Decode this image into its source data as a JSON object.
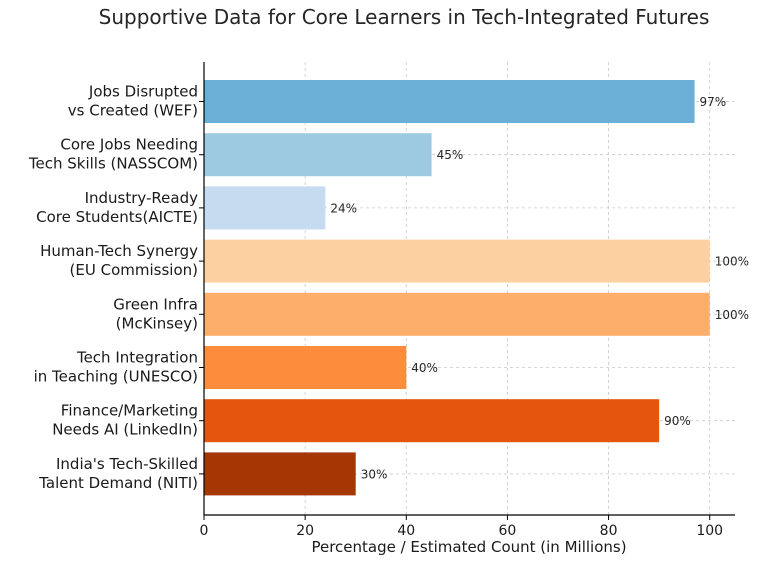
{
  "chart_data": {
    "type": "bar",
    "orientation": "horizontal",
    "title": "Supportive Data for Core Learners in Tech-Integrated Futures",
    "xlabel": "Percentage / Estimated Count (in Millions)",
    "ylabel": "",
    "xlim": [
      0,
      105
    ],
    "xticks": [
      0,
      20,
      40,
      60,
      80,
      100
    ],
    "grid": true,
    "categories": [
      [
        "Jobs Disrupted",
        "vs Created (WEF)"
      ],
      [
        "Core Jobs Needing",
        "Tech Skills (NASSCOM)"
      ],
      [
        "Industry-Ready",
        "Core Students(AICTE)"
      ],
      [
        "Human-Tech Synergy",
        "(EU Commission)"
      ],
      [
        "Green Infra",
        "(McKinsey)"
      ],
      [
        "Tech Integration",
        "in Teaching (UNESCO)"
      ],
      [
        "Finance/Marketing",
        "Needs AI (LinkedIn)"
      ],
      [
        "India's Tech-Skilled",
        "Talent Demand (NITI)"
      ]
    ],
    "values": [
      97,
      45,
      24,
      100,
      100,
      40,
      90,
      30
    ],
    "data_labels": [
      "97%",
      "45%",
      "24%",
      "100%",
      "100%",
      "40%",
      "90%",
      "30%"
    ],
    "colors": [
      "#6baed6",
      "#9ecae1",
      "#c6dbef",
      "#fdd0a2",
      "#fdae6b",
      "#fd8d3c",
      "#e6550d",
      "#a63603"
    ]
  }
}
